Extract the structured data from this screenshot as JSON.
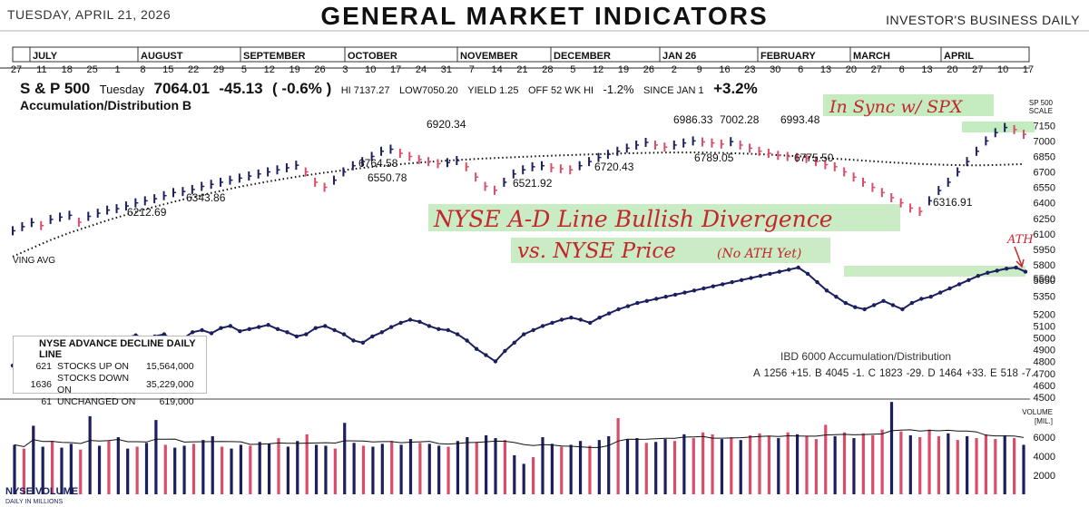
{
  "header": {
    "date": "TUESDAY, APRIL 21, 2026",
    "title": "GENERAL MARKET INDICATORS",
    "publisher": "INVESTOR'S BUSINESS DAILY"
  },
  "colors": {
    "up": "#1b1f5e",
    "down": "#d94d6a",
    "highlight": "#b7e6b0",
    "ink": "#c5262e"
  },
  "axis": {
    "months": [
      "JULY",
      "AUGUST",
      "SEPTEMBER",
      "OCTOBER",
      "NOVEMBER",
      "DECEMBER",
      "JAN 26",
      "FEBRUARY",
      "MARCH",
      "APRIL"
    ],
    "days": [
      "27",
      "11",
      "18",
      "25",
      "1",
      "8",
      "15",
      "22",
      "29",
      "5",
      "12",
      "19",
      "26",
      "3",
      "10",
      "17",
      "24",
      "31",
      "7",
      "14",
      "21",
      "28",
      "5",
      "12",
      "19",
      "26",
      "2",
      "9",
      "16",
      "23",
      "30",
      "6",
      "13",
      "20",
      "27",
      "6",
      "13",
      "20",
      "27",
      "10",
      "17"
    ]
  },
  "stats": {
    "index": "S & P 500",
    "day": "Tuesday",
    "close": "7064.01",
    "change": "-45.13",
    "pct": "( -0.6% )",
    "hi": "HI 7137.27",
    "low": "LOW7050.20",
    "yield": "YIELD 1.25",
    "off": "OFF 52 WK HI",
    "off_val": "-1.2%",
    "since": "SINCE JAN 1",
    "since_val": "+3.2%",
    "acc_dist": "Accumulation/Distribution  B"
  },
  "labels": {
    "sp_scale": "SP 500\nSCALE",
    "ma": "VING AVG",
    "volume_unit": "VOLUME\n[MIL.]",
    "nyse_volume": "NYSE VOLUME",
    "nyse_volume_sub": "DAILY IN MILLIONS",
    "ibd": "IBD 6000 Accumulation/Distribution"
  },
  "annotations": {
    "sync": "In Sync w/ SPX",
    "headline": "NYSE A-D Line Bullish Divergence",
    "sub": "vs. NYSE Price",
    "sub2": "(No ATH Yet)",
    "ath": "ATH"
  },
  "ad_box": {
    "title": "NYSE ADVANCE DECLINE DAILY LINE",
    "rows": [
      {
        "n": "621",
        "label": "STOCKS  UP ON",
        "vol": "15,564,000"
      },
      {
        "n": "1636",
        "label": "STOCKS  DOWN ON",
        "vol": "35,229,000"
      },
      {
        "n": "61",
        "label": "UNCHANGED ON",
        "vol": "619,000"
      }
    ]
  },
  "ibd_row": [
    "A",
    "1256",
    "+15.",
    "B",
    "4045",
    "-1.",
    "C",
    "1823",
    "-29.",
    "D",
    "1464",
    "+33.",
    "E",
    "518",
    "-7."
  ],
  "chart_data": {
    "type": "line",
    "title": "GENERAL MARKET INDICATORS",
    "price_axis_right": [
      7150,
      7000,
      6850,
      6700,
      6550,
      6400,
      6250,
      6100,
      5950,
      5800,
      5650,
      5500,
      5350,
      5200,
      5100,
      5000,
      4900,
      4800,
      4700,
      4600,
      4500
    ],
    "volume_axis_right": [
      6000,
      4000,
      2000
    ],
    "price_labels": [
      {
        "text": "6212.69",
        "value": 6212.69
      },
      {
        "text": "6343.86",
        "value": 6343.86
      },
      {
        "text": "6764.58",
        "value": 6764.58
      },
      {
        "text": "6550.78",
        "value": 6550.78
      },
      {
        "text": "6920.34",
        "value": 6920.34
      },
      {
        "text": "6521.92",
        "value": 6521.92
      },
      {
        "text": "6720.43",
        "value": 6720.43
      },
      {
        "text": "6986.33",
        "value": 6986.33
      },
      {
        "text": "7002.28",
        "value": 7002.28
      },
      {
        "text": "6993.48",
        "value": 6993.48
      },
      {
        "text": "6789.05",
        "value": 6789.05
      },
      {
        "text": "6775.50",
        "value": 6775.5
      },
      {
        "text": "6316.91",
        "value": 6316.91
      }
    ],
    "sp500": [
      6130,
      6170,
      6210,
      6180,
      6240,
      6262,
      6280,
      6213,
      6270,
      6300,
      6330,
      6344,
      6370,
      6400,
      6420,
      6440,
      6470,
      6500,
      6510,
      6530,
      6560,
      6580,
      6600,
      6620,
      6640,
      6660,
      6680,
      6700,
      6720,
      6740,
      6765,
      6700,
      6600,
      6551,
      6620,
      6700,
      6760,
      6800,
      6850,
      6900,
      6920,
      6880,
      6850,
      6820,
      6800,
      6780,
      6790,
      6810,
      6750,
      6650,
      6560,
      6522,
      6600,
      6680,
      6720,
      6750,
      6760,
      6740,
      6730,
      6720,
      6760,
      6800,
      6840,
      6870,
      6900,
      6930,
      6960,
      6986,
      6960,
      6940,
      6960,
      6980,
      7000,
      6990,
      6980,
      6970,
      6993,
      6960,
      6930,
      6900,
      6880,
      6860,
      6850,
      6840,
      6830,
      6800,
      6770,
      6750,
      6700,
      6650,
      6600,
      6550,
      6500,
      6450,
      6400,
      6350,
      6317,
      6420,
      6520,
      6600,
      6700,
      6800,
      6900,
      7000,
      7080,
      7130,
      7110,
      7064
    ],
    "moving_avg": [
      5880,
      5920,
      5960,
      6000,
      6040,
      6075,
      6110,
      6140,
      6170,
      6200,
      6230,
      6258,
      6285,
      6312,
      6338,
      6362,
      6386,
      6410,
      6432,
      6454,
      6475,
      6496,
      6516,
      6536,
      6555,
      6573,
      6590,
      6606,
      6622,
      6637,
      6652,
      6666,
      6679,
      6692,
      6704,
      6716,
      6727,
      6738,
      6748,
      6758,
      6767,
      6775,
      6783,
      6790,
      6797,
      6803,
      6809,
      6815,
      6820,
      6825,
      6830,
      6834,
      6838,
      6842,
      6846,
      6850,
      6854,
      6857,
      6860,
      6863,
      6866,
      6869,
      6872,
      6875,
      6878,
      6880,
      6882,
      6884,
      6886,
      6887,
      6888,
      6888,
      6888,
      6887,
      6886,
      6884,
      6882,
      6879,
      6876,
      6872,
      6868,
      6863,
      6858,
      6852,
      6846,
      6840,
      6834,
      6828,
      6822,
      6816,
      6810,
      6804,
      6798,
      6792,
      6787,
      6782,
      6778,
      6774,
      6771,
      6768,
      6766,
      6764,
      6764,
      6765,
      6767,
      6770,
      6773,
      6776
    ],
    "ad_line_relative": [
      0.06,
      0.14,
      0.2,
      0.24,
      0.26,
      0.22,
      0.26,
      0.28,
      0.3,
      0.25,
      0.22,
      0.28,
      0.33,
      0.35,
      0.32,
      0.34,
      0.36,
      0.3,
      0.32,
      0.38,
      0.4,
      0.37,
      0.42,
      0.44,
      0.39,
      0.41,
      0.43,
      0.45,
      0.41,
      0.38,
      0.34,
      0.36,
      0.42,
      0.44,
      0.4,
      0.36,
      0.3,
      0.28,
      0.34,
      0.38,
      0.43,
      0.47,
      0.5,
      0.48,
      0.44,
      0.41,
      0.4,
      0.36,
      0.3,
      0.22,
      0.16,
      0.1,
      0.2,
      0.28,
      0.36,
      0.4,
      0.44,
      0.47,
      0.5,
      0.52,
      0.5,
      0.47,
      0.52,
      0.56,
      0.6,
      0.63,
      0.66,
      0.68,
      0.7,
      0.72,
      0.74,
      0.76,
      0.78,
      0.8,
      0.82,
      0.84,
      0.86,
      0.88,
      0.9,
      0.92,
      0.94,
      0.96,
      0.98,
      1.0,
      0.94,
      0.86,
      0.78,
      0.72,
      0.66,
      0.62,
      0.6,
      0.64,
      0.68,
      0.64,
      0.6,
      0.66,
      0.7,
      0.72,
      0.76,
      0.8,
      0.84,
      0.88,
      0.92,
      0.95,
      0.97,
      0.99,
      1.0,
      0.96
    ],
    "volume_millions": [
      5200,
      4800,
      7200,
      5000,
      5600,
      4900,
      5300,
      4700,
      8200,
      5100,
      5600,
      6000,
      4800,
      5000,
      5400,
      7800,
      5200,
      4900,
      5100,
      5300,
      5700,
      6100,
      5000,
      4800,
      5200,
      5100,
      5500,
      5300,
      5900,
      5000,
      5600,
      6300,
      5200,
      5100,
      4800,
      7500,
      5400,
      5100,
      5000,
      5300,
      5600,
      5200,
      5800,
      5400,
      5300,
      5100,
      5000,
      5600,
      6000,
      5500,
      6200,
      5900,
      5700,
      4100,
      3200,
      3900,
      6000,
      5300,
      5000,
      5200,
      5600,
      5100,
      5700,
      6100,
      8000,
      5800,
      5900,
      5400,
      5500,
      5800,
      5600,
      6300,
      5900,
      6500,
      6300,
      5800,
      6000,
      5700,
      6200,
      6400,
      6100,
      5900,
      6500,
      6300,
      6100,
      5800,
      7300,
      6100,
      6500,
      5900,
      6400,
      6200,
      6800,
      9700,
      6600,
      6200,
      6000,
      6800,
      6100,
      6400,
      5700,
      6100,
      5900,
      6300,
      5800,
      6200,
      5900,
      5200
    ],
    "ylim_price": [
      4500,
      7200
    ],
    "ylim_volume": [
      0,
      10000
    ],
    "grid": false,
    "legend": "none"
  }
}
